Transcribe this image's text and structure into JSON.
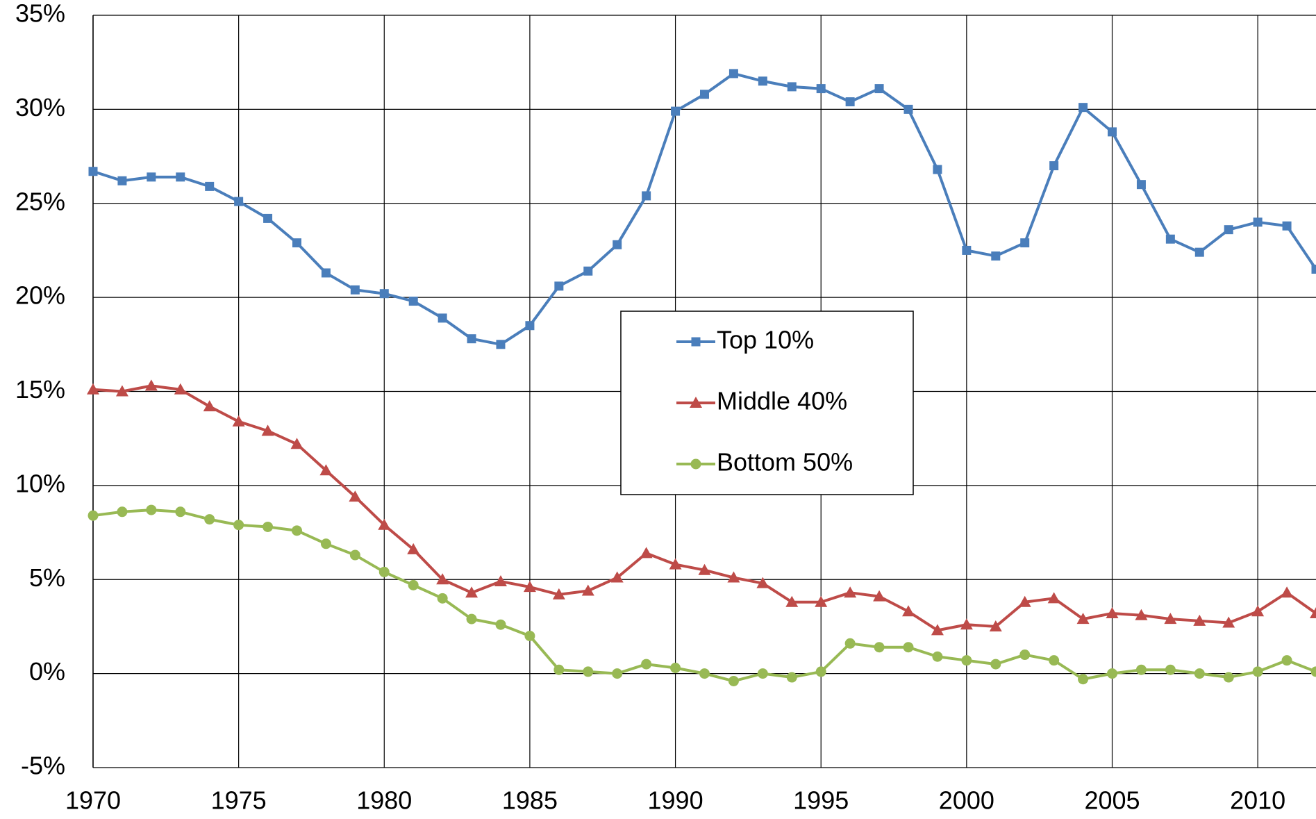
{
  "chart_data": {
    "type": "line",
    "x": [
      1970,
      1971,
      1972,
      1973,
      1974,
      1975,
      1976,
      1977,
      1978,
      1979,
      1980,
      1981,
      1982,
      1983,
      1984,
      1985,
      1986,
      1987,
      1988,
      1989,
      1990,
      1991,
      1992,
      1993,
      1994,
      1995,
      1996,
      1997,
      1998,
      1999,
      2000,
      2001,
      2002,
      2003,
      2004,
      2005,
      2006,
      2007,
      2008,
      2009,
      2010,
      2011,
      2012
    ],
    "xlim": [
      1970,
      2012
    ],
    "xticks": [
      1970,
      1975,
      1980,
      1985,
      1990,
      1995,
      2000,
      2005,
      2010
    ],
    "ylim": [
      -5,
      35
    ],
    "yticks": [
      {
        "value": -5,
        "label": "-5%"
      },
      {
        "value": 0,
        "label": "0%"
      },
      {
        "value": 5,
        "label": "5%"
      },
      {
        "value": 10,
        "label": "10%"
      },
      {
        "value": 15,
        "label": "15%"
      },
      {
        "value": 20,
        "label": "20%"
      },
      {
        "value": 25,
        "label": "25%"
      },
      {
        "value": 30,
        "label": "30%"
      },
      {
        "value": 35,
        "label": "35%"
      }
    ],
    "grid": true,
    "legend": "center",
    "series": [
      {
        "name": "Top 10%",
        "color": "#4a7ebb",
        "marker": "square",
        "values": [
          26.7,
          26.2,
          26.4,
          26.4,
          25.9,
          25.1,
          24.2,
          22.9,
          21.3,
          20.4,
          20.2,
          19.8,
          18.9,
          17.8,
          17.5,
          18.5,
          20.6,
          21.4,
          22.8,
          25.4,
          29.9,
          30.8,
          31.9,
          31.5,
          31.2,
          31.1,
          30.4,
          31.1,
          30.0,
          26.8,
          22.5,
          22.2,
          22.9,
          27.0,
          30.1,
          28.8,
          26.0,
          23.1,
          22.4,
          23.6,
          24.0,
          23.8,
          21.5
        ]
      },
      {
        "name": "Middle 40%",
        "color": "#be4b48",
        "marker": "triangle",
        "values": [
          15.1,
          15.0,
          15.3,
          15.1,
          14.2,
          13.4,
          12.9,
          12.2,
          10.8,
          9.4,
          7.9,
          6.6,
          5.0,
          4.3,
          4.9,
          4.6,
          4.2,
          4.4,
          5.1,
          6.4,
          5.8,
          5.5,
          5.1,
          4.8,
          3.8,
          3.8,
          4.3,
          4.1,
          3.3,
          2.3,
          2.6,
          2.5,
          3.8,
          4.0,
          2.9,
          3.2,
          3.1,
          2.9,
          2.8,
          2.7,
          3.3,
          4.3,
          3.2
        ]
      },
      {
        "name": "Bottom 50%",
        "color": "#98b954",
        "marker": "circle",
        "values": [
          8.4,
          8.6,
          8.7,
          8.6,
          8.2,
          7.9,
          7.8,
          7.6,
          6.9,
          6.3,
          5.4,
          4.7,
          4.0,
          2.9,
          2.6,
          2.0,
          0.2,
          0.1,
          0.0,
          0.5,
          0.3,
          0.0,
          -0.4,
          0.0,
          -0.2,
          0.1,
          1.6,
          1.4,
          1.4,
          0.9,
          0.7,
          0.5,
          1.0,
          0.7,
          -0.3,
          0.0,
          0.2,
          0.2,
          0.0,
          -0.2,
          0.1,
          0.7,
          0.1
        ]
      }
    ]
  }
}
